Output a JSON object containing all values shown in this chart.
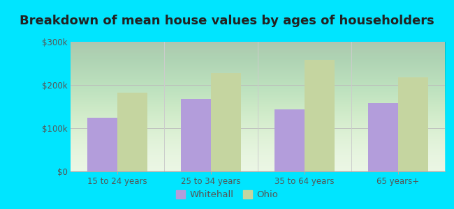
{
  "title": "Breakdown of mean house values by ages of householders",
  "categories": [
    "15 to 24 years",
    "25 to 34 years",
    "35 to 64 years",
    "65 years+"
  ],
  "whitehall_values": [
    125000,
    168000,
    143000,
    158000
  ],
  "ohio_values": [
    182000,
    228000,
    258000,
    217000
  ],
  "ylim": [
    0,
    300000
  ],
  "yticks": [
    0,
    100000,
    200000,
    300000
  ],
  "ytick_labels": [
    "$0",
    "$100k",
    "$200k",
    "$300k"
  ],
  "whitehall_color": "#b39ddb",
  "ohio_color": "#c5d5a0",
  "plot_bg_top": "#d8eed8",
  "plot_bg_bottom": "#f5fff5",
  "outer_background": "#00e5ff",
  "bar_width": 0.32,
  "legend_whitehall": "Whitehall",
  "legend_ohio": "Ohio",
  "title_fontsize": 13,
  "tick_fontsize": 8.5,
  "legend_fontsize": 9.5,
  "title_color": "#222222",
  "tick_color": "#555555"
}
